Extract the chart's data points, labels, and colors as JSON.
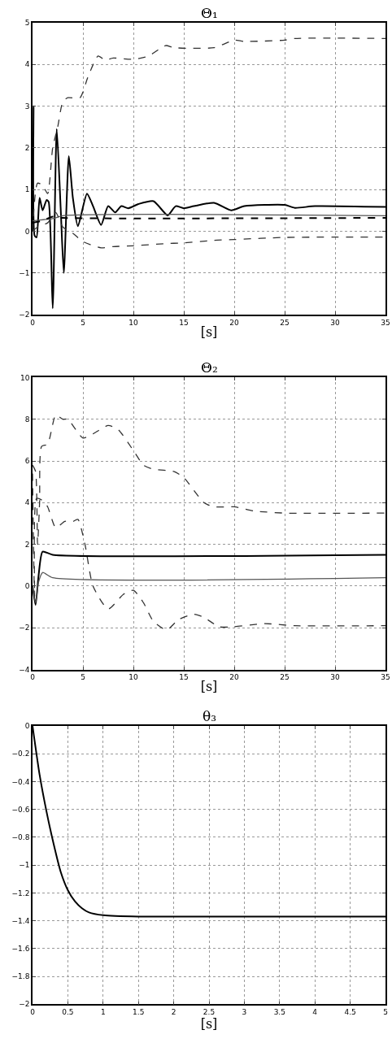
{
  "chart_data": [
    {
      "type": "line",
      "title": "Θ₁",
      "xlabel": "[s]",
      "xlim": [
        0,
        35
      ],
      "xticks": [
        0,
        5,
        10,
        15,
        20,
        25,
        30,
        35
      ],
      "ylim": [
        -2,
        5
      ],
      "yticks": [
        -2,
        -1,
        0,
        1,
        2,
        3,
        4,
        5
      ],
      "grid": true,
      "series": [
        {
          "color": "#000000",
          "line_style": "solid",
          "x": [
            0,
            0.1,
            0.2,
            0.4,
            0.7,
            1.0,
            1.4,
            1.6,
            2.0,
            2.4,
            2.8,
            3.1,
            3.6,
            4.0,
            4.5,
            5.4,
            6.0,
            6.8,
            7.5,
            8.2,
            8.8,
            9.5,
            10.5,
            12,
            13.4,
            14.2,
            15,
            16,
            18,
            19.7,
            21,
            25,
            26,
            28,
            35
          ],
          "values": [
            0,
            3.0,
            -0.1,
            -0.15,
            0.8,
            0.5,
            0.75,
            0.7,
            -1.85,
            2.45,
            0.5,
            -1.0,
            1.8,
            0.8,
            0.12,
            0.9,
            0.6,
            0.15,
            0.6,
            0.45,
            0.6,
            0.55,
            0.65,
            0.72,
            0.38,
            0.6,
            0.55,
            0.6,
            0.68,
            0.5,
            0.6,
            0.63,
            0.56,
            0.6,
            0.58
          ]
        },
        {
          "color": "#555555",
          "line_style": "solid",
          "x": [
            0,
            2,
            3,
            35
          ],
          "values": [
            0.25,
            0.3,
            0.37,
            0.37
          ]
        },
        {
          "color": "#000000",
          "line_style": "dashed",
          "x": [
            0,
            1,
            2,
            3,
            35
          ],
          "values": [
            0.2,
            0.25,
            0.35,
            0.32,
            0.32
          ]
        },
        {
          "color": "#333333",
          "line_style": "dashed",
          "x": [
            0,
            0.5,
            1.0,
            1.5,
            2.0,
            2.5,
            3,
            3.5,
            4.7,
            5.5,
            6.5,
            7.2,
            8,
            10,
            11.5,
            13.2,
            14,
            18,
            20,
            21,
            25,
            26,
            35
          ],
          "values": [
            0,
            1.15,
            1.1,
            0.9,
            2.0,
            2.5,
            3.1,
            3.2,
            3.2,
            3.7,
            4.2,
            4.1,
            4.15,
            4.12,
            4.2,
            4.45,
            4.4,
            4.4,
            4.58,
            4.55,
            4.58,
            4.62,
            4.62
          ]
        },
        {
          "color": "#333333",
          "line_style": "dashed",
          "x": [
            0,
            0.5,
            1.5,
            2.3,
            3,
            4,
            5,
            6.8,
            8,
            10,
            13,
            15,
            18,
            20,
            25,
            35
          ],
          "values": [
            0,
            0.1,
            0.2,
            0.45,
            0.1,
            -0.05,
            -0.25,
            -0.4,
            -0.37,
            -0.35,
            -0.3,
            -0.28,
            -0.22,
            -0.2,
            -0.15,
            -0.14
          ]
        }
      ]
    },
    {
      "type": "line",
      "title": "Θ₂",
      "xlabel": "[s]",
      "xlim": [
        0,
        35
      ],
      "xticks": [
        0,
        5,
        10,
        15,
        20,
        25,
        30,
        35
      ],
      "ylim": [
        -4,
        10
      ],
      "yticks": [
        -4,
        -2,
        0,
        2,
        4,
        6,
        8,
        10
      ],
      "grid": true,
      "series": [
        {
          "color": "#333333",
          "line_style": "dashed",
          "x": [
            0,
            0.3,
            0.5,
            0.7,
            0.9,
            1.5,
            2.3,
            3,
            3.5,
            5,
            6,
            7.5,
            8.5,
            10,
            11,
            12,
            14,
            15,
            17,
            18,
            20,
            22,
            25,
            35
          ],
          "values": [
            5.8,
            5.5,
            2,
            4.0,
            6.7,
            6.8,
            8.2,
            8.0,
            8.0,
            7.1,
            7.3,
            7.7,
            7.5,
            6.5,
            5.8,
            5.6,
            5.5,
            5.2,
            4.0,
            3.8,
            3.8,
            3.6,
            3.5,
            3.5
          ]
        },
        {
          "color": "#333333",
          "line_style": "dashed",
          "x": [
            0,
            0.2,
            0.4,
            1,
            1.5,
            2.3,
            3.2,
            4,
            4.5,
            5.2,
            6,
            7.5,
            9,
            10,
            11,
            12,
            13.3,
            14.5,
            16,
            17,
            18.5,
            20,
            23,
            26,
            35
          ],
          "values": [
            5.4,
            -0.5,
            4.2,
            4.1,
            3.8,
            2.8,
            3.1,
            3.1,
            3.2,
            2.0,
            0.0,
            -1.1,
            -0.4,
            -0.2,
            -0.8,
            -1.7,
            -2.1,
            -1.6,
            -1.35,
            -1.5,
            -1.95,
            -1.95,
            -1.8,
            -1.9,
            -1.9
          ]
        },
        {
          "color": "#000000",
          "line_style": "solid",
          "x": [
            0,
            0.3,
            0.6,
            1.0,
            2,
            35
          ],
          "values": [
            0,
            -0.9,
            0.5,
            1.65,
            1.5,
            1.5
          ]
        },
        {
          "color": "#555555",
          "line_style": "solid",
          "x": [
            0,
            0.3,
            0.6,
            1.0,
            2,
            35
          ],
          "values": [
            0,
            -0.8,
            0.2,
            0.65,
            0.4,
            0.4
          ]
        }
      ]
    },
    {
      "type": "line",
      "title": "θ₃",
      "xlabel": "[s]",
      "xlim": [
        0,
        5
      ],
      "xticks": [
        0,
        0.5,
        1,
        1.5,
        2,
        2.5,
        3,
        3.5,
        4,
        4.5,
        5
      ],
      "ylim": [
        -2,
        0
      ],
      "yticks": [
        -2,
        -1.8,
        -1.6,
        -1.4,
        -1.2,
        -1,
        -0.8,
        -0.6,
        -0.4,
        -0.2,
        0
      ],
      "grid": true,
      "series": [
        {
          "color": "#000000",
          "line_style": "solid",
          "x": [
            0,
            0.1,
            0.2,
            0.3,
            0.4,
            0.5,
            0.6,
            0.7,
            0.8,
            1.0,
            1.5,
            5
          ],
          "values": [
            0,
            -0.35,
            -0.62,
            -0.85,
            -1.05,
            -1.18,
            -1.26,
            -1.31,
            -1.34,
            -1.36,
            -1.37,
            -1.37
          ]
        }
      ]
    }
  ]
}
